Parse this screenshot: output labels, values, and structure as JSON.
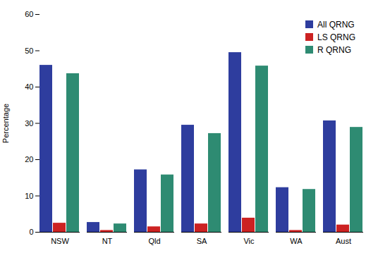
{
  "chart_data": {
    "type": "bar",
    "categories": [
      "NSW",
      "NT",
      "Qld",
      "SA",
      "Vic",
      "WA",
      "Aust"
    ],
    "series": [
      {
        "name": "All QRNG",
        "color": "#2e3d9e",
        "values": [
          46.0,
          2.7,
          17.2,
          29.5,
          49.5,
          12.3,
          30.7
        ]
      },
      {
        "name": "LS QRNG",
        "color": "#cc2222",
        "values": [
          2.5,
          0.5,
          1.5,
          2.3,
          3.9,
          0.5,
          2.0
        ]
      },
      {
        "name": "R QRNG",
        "color": "#2e8b72",
        "values": [
          43.7,
          2.3,
          15.8,
          27.2,
          45.8,
          11.8,
          28.9
        ]
      }
    ],
    "ylabel": "Percentage",
    "ylim": [
      0,
      60
    ],
    "yticks": [
      0,
      10,
      20,
      30,
      40,
      50,
      60
    ],
    "legend": "upper right"
  }
}
